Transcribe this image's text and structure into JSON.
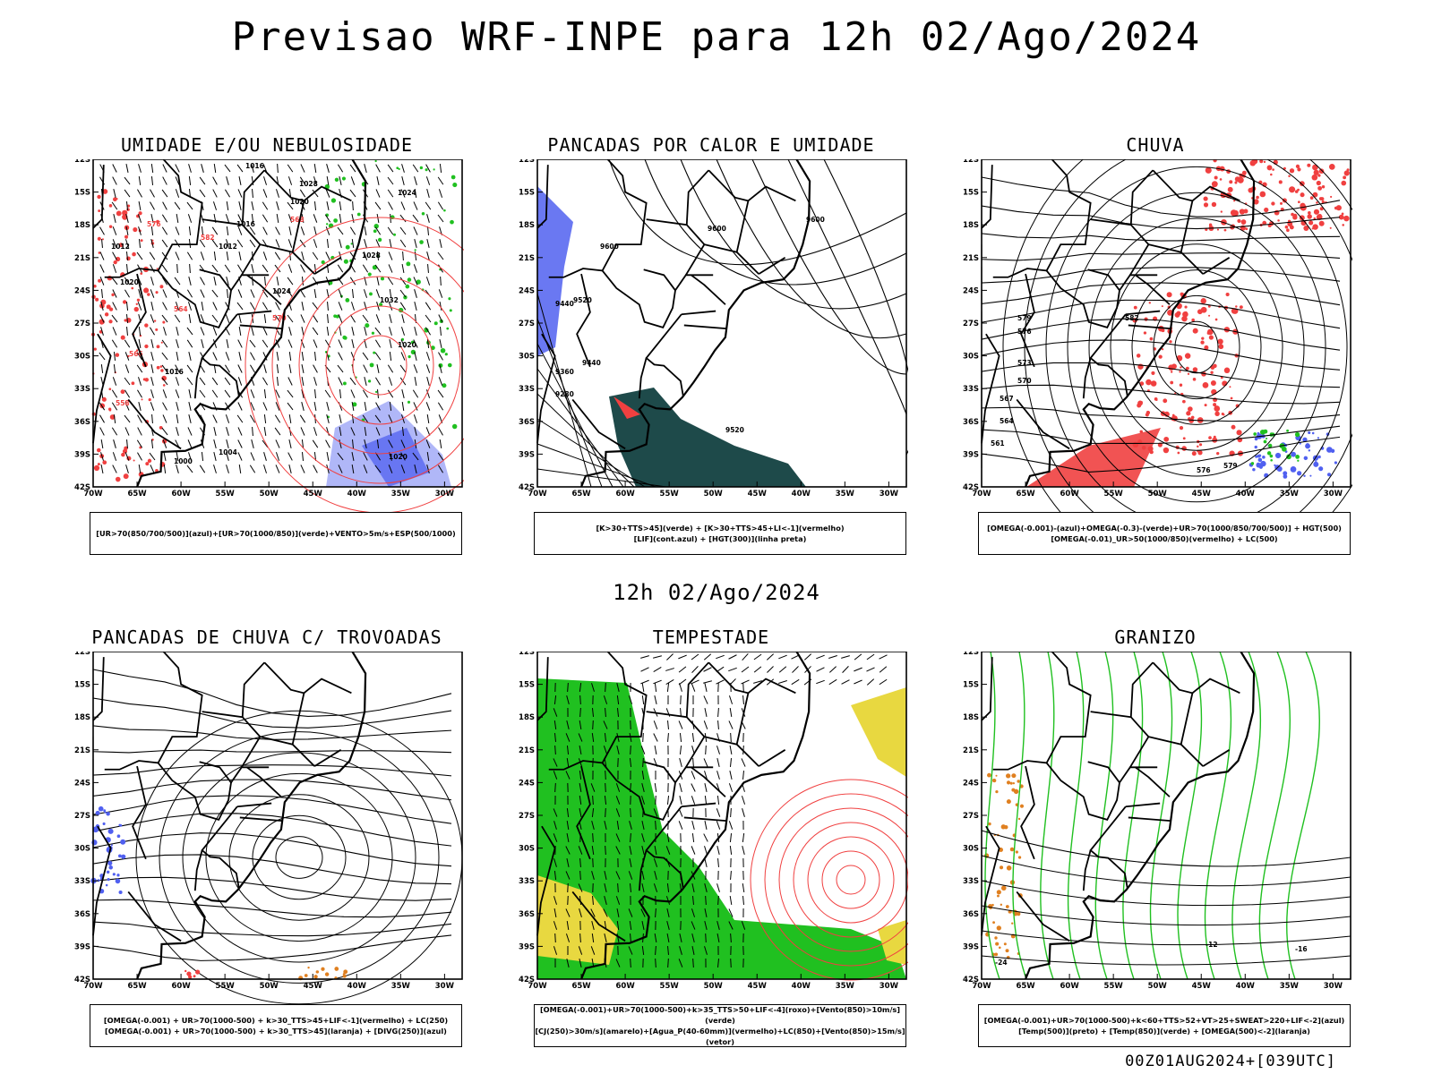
{
  "title": "Previsao WRF-INPE  para 12h 02/Ago/2024",
  "mid_date": "12h 02/Ago/2024",
  "footer": "00Z01AUG2024+[039UTC]",
  "lat_ticks": [
    "12S",
    "15S",
    "18S",
    "21S",
    "24S",
    "27S",
    "30S",
    "33S",
    "36S",
    "39S",
    "42S"
  ],
  "lon_ticks": [
    "70W",
    "65W",
    "60W",
    "55W",
    "50W",
    "45W",
    "40W",
    "35W",
    "30W"
  ],
  "colors": {
    "humid_blue": "#5060f0",
    "green": "#20c020",
    "red": "#f04040",
    "dark_teal": "#1e4a4a",
    "yellow": "#e8d840",
    "orange": "#e08020"
  },
  "panels": [
    {
      "title": "UMIDADE E/OU NEBULOSIDADE",
      "legend": [
        "[UR>70(850/700/500)](azul)+[UR>70(1000/850)](verde)+VENTO>5m/s+ESP(500/1000)"
      ],
      "labels": [
        "1016",
        "1020",
        "1024",
        "1028",
        "1032",
        "1020",
        "1024",
        "1012",
        "1016",
        "1012",
        "1020",
        "1016",
        "1000",
        "1004",
        "1020",
        "1028",
        "576",
        "564",
        "568",
        "582",
        "570",
        "566",
        "558"
      ]
    },
    {
      "title": "PANCADAS POR CALOR E UMIDADE",
      "legend": [
        "[K>30+TTS>45](verde) + [K>30+TTS>45+LI<-1](vermelho)",
        "[LIF](cont.azul) + [HGT(300)](linha preta)"
      ],
      "labels": [
        "9600",
        "9600",
        "9600",
        "9520",
        "9440",
        "9440",
        "9360",
        "9280",
        "9520"
      ]
    },
    {
      "title": "CHUVA",
      "legend": [
        "[OMEGA(-0.001)-(azul)+OMEGA(-0.3)-(verde)+UR>70(1000/850/700/500)] + HGT(500)",
        "[OMEGA(-0.01)_UR>50(1000/850)(vermelho) + LC(500)"
      ],
      "labels": [
        "582",
        "579",
        "576",
        "573",
        "570",
        "567",
        "564",
        "561",
        "576",
        "579"
      ]
    },
    {
      "title": "PANCADAS DE CHUVA C/ TROVOADAS",
      "legend": [
        "[OMEGA(-0.001) + UR>70(1000-500) + k>30_TTS>45+LIF<-1](vermelho) + LC(250)",
        "[OMEGA(-0.001) + UR>70(1000-500) + k>30_TTS>45](laranja) + [DIVG(250)](azul)"
      ],
      "labels": []
    },
    {
      "title": "TEMPESTADE",
      "legend": [
        "[OMEGA(-0.001)+UR>70(1000-500)+k>35_TTS>50+LIF<-4](roxo)+[Vento(850)>10m/s](verde)",
        "[CJ(250)>30m/s](amarelo)+[Agua_P(40-60mm)](vermelho)+LC(850)+[Vento(850)>15m/s](vetor)"
      ],
      "labels": []
    },
    {
      "title": "GRANIZO",
      "legend": [
        "[OMEGA(-0.001)+UR>70(1000-500)+k<60+TTS>52+VT>25+SWEAT>220+LIF<-2](azul)",
        "[Temp(500)](preto) + [Temp(850)](verde) + [OMEGA(500)<-2](laranja)"
      ],
      "labels": [
        "-12",
        "-16",
        "-24"
      ]
    }
  ]
}
